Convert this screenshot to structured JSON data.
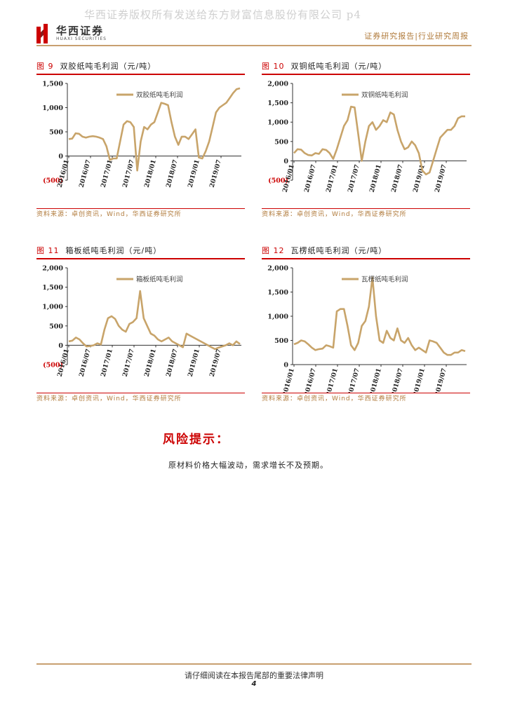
{
  "watermark": "华西证券版权所有发送给东方财富信息股份有限公司 p4",
  "logo": {
    "cn": "华西证券",
    "en": "HUAXI SECURITIES"
  },
  "report_type": "证券研究报告|行业研究周报",
  "colors": {
    "line": "#c8a46a",
    "accent_red": "#cc0000",
    "gold": "#b07a3a"
  },
  "figures": [
    {
      "label": "图 9",
      "title": "双胶纸吨毛利润（元/吨）",
      "source": "资料来源：卓创资讯，Wind，华西证券研究所",
      "chart_data": {
        "type": "line",
        "ylim": [
          -500,
          1500
        ],
        "yticks": [
          "(500)",
          "0",
          "500",
          "1,000",
          "1,500"
        ],
        "ytick_values": [
          -500,
          0,
          500,
          1000,
          1500
        ],
        "xticks": [
          "2016/01",
          "2016/07",
          "2017/01",
          "2017/07",
          "2018/01",
          "2018/07",
          "2019/01",
          "2019/07"
        ],
        "series": [
          {
            "name": "双胶纸吨毛利润",
            "values": [
              350,
              360,
              470,
              460,
              400,
              380,
              400,
              410,
              400,
              380,
              350,
              200,
              -80,
              -50,
              -50,
              300,
              650,
              720,
              700,
              600,
              -300,
              300,
              600,
              550,
              650,
              700,
              900,
              1100,
              1080,
              1050,
              700,
              400,
              230,
              400,
              400,
              350,
              450,
              550,
              -30,
              -50,
              100,
              300,
              600,
              900,
              1000,
              1050,
              1100,
              1200,
              1300,
              1380,
              1400
            ]
          }
        ]
      }
    },
    {
      "label": "图 10",
      "title": "双铜纸吨毛利润（元/吨）",
      "source": "资料来源：卓创资讯，Wind，华西证券研究所",
      "chart_data": {
        "type": "line",
        "ylim": [
          -500,
          2000
        ],
        "yticks": [
          "(500)",
          "0",
          "500",
          "1,000",
          "1,500",
          "2,000"
        ],
        "ytick_values": [
          -500,
          0,
          500,
          1000,
          1500,
          2000
        ],
        "xticks": [
          "2016/01",
          "2016/07",
          "2017/01",
          "2017/07",
          "2018/01",
          "2018/07",
          "2019/01",
          "2019/07"
        ],
        "series": [
          {
            "name": "双铜纸吨毛利润",
            "values": [
              200,
              300,
              290,
              200,
              150,
              140,
              200,
              180,
              300,
              280,
              200,
              50,
              300,
              600,
              900,
              1050,
              1400,
              1380,
              700,
              0,
              500,
              900,
              1000,
              800,
              900,
              1050,
              1000,
              1250,
              1200,
              800,
              500,
              300,
              350,
              500,
              400,
              200,
              -250,
              -350,
              -300,
              0,
              300,
              600,
              700,
              800,
              800,
              900,
              1100,
              1150,
              1150
            ]
          }
        ]
      }
    },
    {
      "label": "图 11",
      "title": "箱板纸吨毛利润（元/吨）",
      "source": "资料来源：卓创资讯，Wind，华西证券研究所",
      "chart_data": {
        "type": "line",
        "ylim": [
          -500,
          2000
        ],
        "yticks": [
          "(500)",
          "0",
          "500",
          "1,000",
          "1,500",
          "2,000"
        ],
        "ytick_values": [
          -500,
          0,
          500,
          1000,
          1500,
          2000
        ],
        "xticks": [
          "2016/01",
          "2016/07",
          "2017/01",
          "2017/07",
          "2018/01",
          "2018/07",
          "2019/01",
          "2019/07"
        ],
        "series": [
          {
            "name": "箱板纸吨毛利润",
            "values": [
              100,
              120,
              200,
              150,
              50,
              -30,
              -20,
              0,
              50,
              20,
              400,
              700,
              750,
              680,
              500,
              400,
              350,
              550,
              600,
              700,
              1400,
              700,
              500,
              300,
              250,
              150,
              100,
              150,
              200,
              100,
              50,
              0,
              -50,
              300,
              250,
              200,
              150,
              100,
              50,
              0,
              -50,
              -100,
              -60,
              -30,
              0,
              50,
              0,
              100,
              30
            ]
          }
        ]
      }
    },
    {
      "label": "图 12",
      "title": "瓦楞纸吨毛利润（元/吨）",
      "source": "资料来源：卓创资讯，Wind，华西证券研究所",
      "chart_data": {
        "type": "line",
        "ylim": [
          0,
          2000
        ],
        "yticks": [
          "0",
          "500",
          "1,000",
          "1,500",
          "2,000"
        ],
        "ytick_values": [
          0,
          500,
          1000,
          1500,
          2000
        ],
        "xticks": [
          "2016/01",
          "2016/07",
          "2017/01",
          "2017/07",
          "2018/01",
          "2018/07",
          "2019/01",
          "2019/07"
        ],
        "series": [
          {
            "name": "瓦楞纸吨毛利润",
            "values": [
              420,
              450,
              500,
              480,
              420,
              350,
              300,
              320,
              330,
              400,
              380,
              350,
              1100,
              1150,
              1150,
              800,
              400,
              300,
              450,
              800,
              900,
              1200,
              1800,
              1000,
              500,
              450,
              700,
              550,
              500,
              750,
              500,
              450,
              550,
              400,
              300,
              350,
              300,
              250,
              500,
              480,
              450,
              350,
              250,
              200,
              200,
              250,
              250,
              300,
              280
            ]
          }
        ]
      }
    }
  ],
  "risk": {
    "title": "风险提示：",
    "text": "原材料价格大幅波动，需求增长不及预期。"
  },
  "footer": {
    "text": "请仔细阅读在本报告尾部的重要法律声明",
    "page": "4"
  }
}
